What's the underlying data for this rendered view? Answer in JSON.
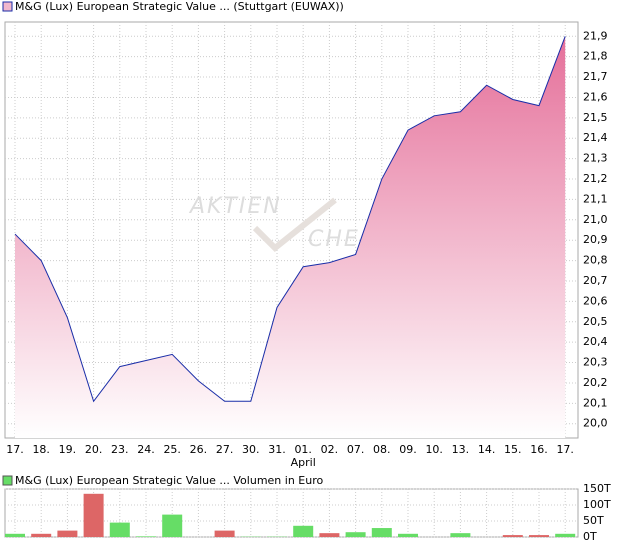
{
  "chart_data": [
    {
      "type": "area",
      "title": "M&G (Lux) European Strategic Value ... (Stuttgart (EUWAX))",
      "watermark": [
        "AKTIEN",
        "CHECK"
      ],
      "categories": [
        "17.",
        "18.",
        "19.",
        "20.",
        "23.",
        "24.",
        "25.",
        "26.",
        "27.",
        "30.",
        "31.",
        "01.",
        "02.",
        "07.",
        "08.",
        "09.",
        "10.",
        "13.",
        "14.",
        "15.",
        "16.",
        "17."
      ],
      "sublabels": [
        null,
        null,
        null,
        null,
        null,
        null,
        null,
        null,
        null,
        null,
        null,
        "April",
        null,
        null,
        null,
        null,
        null,
        null,
        null,
        null,
        null,
        null
      ],
      "values": [
        20.93,
        20.8,
        20.52,
        20.11,
        20.28,
        20.31,
        20.34,
        20.21,
        20.11,
        20.11,
        20.57,
        20.77,
        20.79,
        20.83,
        21.2,
        21.44,
        21.51,
        21.53,
        21.66,
        21.59,
        21.56,
        21.9
      ],
      "color": "#1a2ea8",
      "fill_top": "#e5709a",
      "ylim": [
        19.93,
        21.97
      ],
      "yticks": [
        {
          "value": 20.0,
          "label": "20,0"
        },
        {
          "value": 20.1,
          "label": "20,1"
        },
        {
          "value": 20.2,
          "label": "20,2"
        },
        {
          "value": 20.3,
          "label": "20,3"
        },
        {
          "value": 20.4,
          "label": "20,4"
        },
        {
          "value": 20.5,
          "label": "20,5"
        },
        {
          "value": 20.6,
          "label": "20,6"
        },
        {
          "value": 20.7,
          "label": "20,7"
        },
        {
          "value": 20.8,
          "label": "20,8"
        },
        {
          "value": 20.9,
          "label": "20,9"
        },
        {
          "value": 21.0,
          "label": "21,0"
        },
        {
          "value": 21.1,
          "label": "21,1"
        },
        {
          "value": 21.2,
          "label": "21,2"
        },
        {
          "value": 21.3,
          "label": "21,3"
        },
        {
          "value": 21.4,
          "label": "21,4"
        },
        {
          "value": 21.5,
          "label": "21,5"
        },
        {
          "value": 21.6,
          "label": "21,6"
        },
        {
          "value": 21.7,
          "label": "21,7"
        },
        {
          "value": 21.8,
          "label": "21,8"
        },
        {
          "value": 21.9,
          "label": "21,9"
        }
      ],
      "grid": true
    },
    {
      "type": "bar",
      "title": "M&G (Lux) European Strategic Value ... Volumen in Euro",
      "legend_color": "#66dd66",
      "values": [
        10,
        10,
        20,
        135,
        45,
        2,
        70,
        0,
        20,
        1,
        1,
        35,
        12,
        15,
        28,
        10,
        0,
        12,
        0,
        6,
        6,
        10
      ],
      "colors": [
        "#66dd66",
        "#dd6666",
        "#dd6666",
        "#dd6666",
        "#66dd66",
        "#66dd66",
        "#66dd66",
        "#66dd66",
        "#dd6666",
        "#66dd66",
        "#66dd66",
        "#66dd66",
        "#dd6666",
        "#66dd66",
        "#66dd66",
        "#66dd66",
        "#66dd66",
        "#66dd66",
        "#66dd66",
        "#dd6666",
        "#dd6666",
        "#66dd66"
      ],
      "ylim": [
        0,
        150
      ],
      "yticks": [
        {
          "value": 0,
          "label": "0T"
        },
        {
          "value": 50,
          "label": "50T"
        },
        {
          "value": 100,
          "label": "100T"
        },
        {
          "value": 150,
          "label": "150T"
        }
      ],
      "grid": true
    }
  ]
}
